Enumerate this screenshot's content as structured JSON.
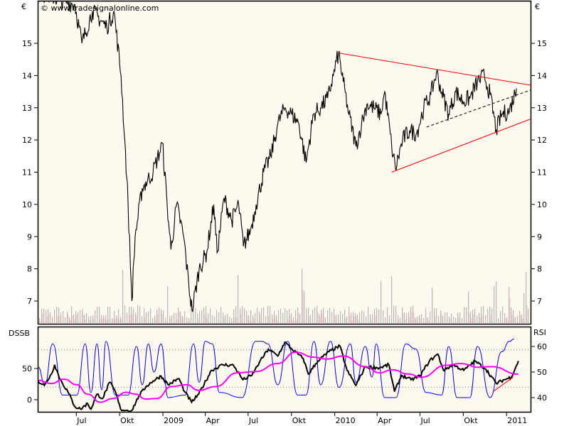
{
  "watermark": "© www.tradesignalonline.com",
  "colors": {
    "background": "#fdf9ee",
    "price": "#000000",
    "trendline": "#ff0000",
    "dssb": "#000000",
    "dssb_signal": "#ff00ff",
    "rsi": "#0000ff",
    "volume": "#b8b8b8",
    "volume_highlight": "#f2c6c6"
  },
  "chart_data": [
    {
      "type": "line",
      "title": "",
      "ylabel_left": "€",
      "ylabel_right": "€",
      "ylim": [
        6.4,
        16.34
      ],
      "xlim": [
        "2008-04-10",
        "2011-02-21"
      ],
      "yticks": [
        "7",
        "8",
        "9",
        "10",
        "11",
        "12",
        "13",
        "14",
        "15"
      ],
      "grid": false,
      "volume_bars": true,
      "series": [
        {
          "points": [
            [
              "2008-04-10",
              16.6
            ],
            [
              "2008-06-28",
              16.2
            ],
            [
              "2008-07-13",
              15.0
            ],
            [
              "2008-08-04",
              16.0
            ],
            [
              "2008-09-04",
              15.5
            ],
            [
              "2008-09-19",
              16.0
            ],
            [
              "2008-10-04",
              14.0
            ],
            [
              "2008-10-12",
              12.0
            ],
            [
              "2008-10-19",
              10.0
            ],
            [
              "2008-10-27",
              7.0
            ],
            [
              "2008-11-03",
              9.0
            ],
            [
              "2008-11-18",
              10.5
            ],
            [
              "2008-12-11",
              11.0
            ],
            [
              "2008-12-31",
              11.9
            ],
            [
              "2009-01-10",
              10.0
            ],
            [
              "2009-01-18",
              8.6
            ],
            [
              "2009-01-30",
              10.0
            ],
            [
              "2009-02-14",
              9.0
            ],
            [
              "2009-02-25",
              7.5
            ],
            [
              "2009-03-04",
              6.7
            ],
            [
              "2009-03-19",
              8.0
            ],
            [
              "2009-04-04",
              8.5
            ],
            [
              "2009-04-19",
              10.0
            ],
            [
              "2009-04-26",
              8.5
            ],
            [
              "2009-05-11",
              10.2
            ],
            [
              "2009-05-27",
              9.5
            ],
            [
              "2009-06-11",
              10.0
            ],
            [
              "2009-06-21",
              8.7
            ],
            [
              "2009-07-06",
              9.2
            ],
            [
              "2009-07-18",
              10.0
            ],
            [
              "2009-08-03",
              11.0
            ],
            [
              "2009-08-18",
              11.5
            ],
            [
              "2009-09-02",
              12.5
            ],
            [
              "2009-09-17",
              13.0
            ],
            [
              "2009-10-02",
              12.8
            ],
            [
              "2009-10-17",
              12.5
            ],
            [
              "2009-11-01",
              11.3
            ],
            [
              "2009-11-17",
              12.8
            ],
            [
              "2009-12-02",
              13.0
            ],
            [
              "2009-12-17",
              13.3
            ],
            [
              "2009-12-29",
              14.0
            ],
            [
              "2010-01-09",
              14.7
            ],
            [
              "2010-01-19",
              13.8
            ],
            [
              "2010-01-31",
              12.8
            ],
            [
              "2010-02-15",
              11.8
            ],
            [
              "2010-02-27",
              12.5
            ],
            [
              "2010-03-10",
              13.1
            ],
            [
              "2010-03-25",
              13.0
            ],
            [
              "2010-04-09",
              12.8
            ],
            [
              "2010-04-17",
              13.5
            ],
            [
              "2010-05-02",
              11.8
            ],
            [
              "2010-05-10",
              11.1
            ],
            [
              "2010-05-25",
              12.0
            ],
            [
              "2010-06-09",
              12.3
            ],
            [
              "2010-06-24",
              12.2
            ],
            [
              "2010-07-09",
              13.0
            ],
            [
              "2010-07-24",
              13.4
            ],
            [
              "2010-08-05",
              14.1
            ],
            [
              "2010-08-16",
              13.5
            ],
            [
              "2010-08-31",
              12.8
            ],
            [
              "2010-09-15",
              13.5
            ],
            [
              "2010-09-30",
              13.2
            ],
            [
              "2010-10-15",
              13.3
            ],
            [
              "2010-10-31",
              13.8
            ],
            [
              "2010-11-15",
              14.0
            ],
            [
              "2010-11-27",
              13.4
            ],
            [
              "2010-12-10",
              12.3
            ],
            [
              "2010-12-22",
              12.8
            ],
            [
              "2011-01-07",
              12.9
            ],
            [
              "2011-01-22",
              13.6
            ]
          ]
        }
      ],
      "trendlines": [
        {
          "style": "solid",
          "color": "#ff0000",
          "from": [
            "2010-01-09",
            14.7
          ],
          "to": [
            "2011-02-21",
            13.7
          ]
        },
        {
          "style": "solid",
          "color": "#ff0000",
          "from": [
            "2010-05-02",
            11.0
          ],
          "to": [
            "2011-02-21",
            12.65
          ]
        },
        {
          "style": "dashed",
          "color": "#000000",
          "from": [
            "2010-07-15",
            12.4
          ],
          "to": [
            "2011-02-21",
            13.55
          ]
        }
      ]
    },
    {
      "type": "line",
      "ylabel_left": "DSSB",
      "ylabel_right": "RSI",
      "ylim_left": [
        -18,
        110
      ],
      "yticks_left": [
        "0",
        "50"
      ],
      "ylim_right": [
        37,
        65
      ],
      "yticks_right": [
        "40",
        "50",
        "60"
      ],
      "reference_levels_left": [
        20,
        80
      ],
      "xticks": [
        "Jul",
        "Okt",
        "2009",
        "Apr",
        "Jul",
        "Okt",
        "2010",
        "Apr",
        "Jul",
        "Okt",
        "2011"
      ],
      "xtick_dates": [
        "2008-07-01",
        "2008-10-01",
        "2009-01-01",
        "2009-04-01",
        "2009-07-01",
        "2009-10-01",
        "2010-01-01",
        "2010-04-01",
        "2010-07-01",
        "2010-10-01",
        "2011-01-01"
      ],
      "series": [
        {
          "axis": "right",
          "color": "#0000ff",
          "points": [
            [
              "2008-04-11",
              52
            ],
            [
              "2008-04-25",
              45
            ],
            [
              "2008-05-12",
              61
            ],
            [
              "2008-06-02",
              41
            ],
            [
              "2008-07-02",
              41
            ],
            [
              "2008-07-20",
              61
            ],
            [
              "2008-08-01",
              42
            ],
            [
              "2008-08-14",
              61
            ],
            [
              "2008-08-24",
              43
            ],
            [
              "2008-09-02",
              62
            ],
            [
              "2008-09-22",
              41
            ],
            [
              "2008-10-19",
              41
            ],
            [
              "2008-11-06",
              60
            ],
            [
              "2008-11-18",
              45
            ],
            [
              "2008-12-01",
              61
            ],
            [
              "2008-12-13",
              50
            ],
            [
              "2008-12-28",
              61
            ],
            [
              "2009-01-12",
              40
            ],
            [
              "2009-02-17",
              41
            ],
            [
              "2009-03-07",
              61
            ],
            [
              "2009-03-19",
              46
            ],
            [
              "2009-04-01",
              62
            ],
            [
              "2009-04-16",
              61
            ],
            [
              "2009-05-01",
              42
            ],
            [
              "2009-06-18",
              40
            ],
            [
              "2009-07-17",
              62
            ],
            [
              "2009-07-31",
              62
            ],
            [
              "2009-08-12",
              61
            ],
            [
              "2009-09-02",
              45
            ],
            [
              "2009-09-23",
              62
            ],
            [
              "2009-10-14",
              41
            ],
            [
              "2009-11-01",
              41
            ],
            [
              "2009-11-18",
              62
            ],
            [
              "2009-12-02",
              45
            ],
            [
              "2009-12-23",
              62
            ],
            [
              "2010-01-10",
              44
            ],
            [
              "2010-02-03",
              61
            ],
            [
              "2010-02-15",
              46
            ],
            [
              "2010-03-07",
              60
            ],
            [
              "2010-03-21",
              48
            ],
            [
              "2010-03-30",
              61
            ],
            [
              "2010-04-17",
              40
            ],
            [
              "2010-05-11",
              40
            ],
            [
              "2010-06-01",
              61
            ],
            [
              "2010-06-22",
              59
            ],
            [
              "2010-07-14",
              42
            ],
            [
              "2010-08-16",
              41
            ],
            [
              "2010-08-31",
              60
            ],
            [
              "2010-09-18",
              40
            ],
            [
              "2010-10-15",
              40
            ],
            [
              "2010-10-31",
              60
            ],
            [
              "2010-11-27",
              40
            ],
            [
              "2010-12-22",
              58
            ],
            [
              "2011-01-07",
              62
            ],
            [
              "2011-01-17",
              63
            ]
          ]
        },
        {
          "axis": "left",
          "color": "#000000",
          "points": [
            [
              "2008-04-11",
              30
            ],
            [
              "2008-04-24",
              23
            ],
            [
              "2008-05-09",
              41
            ],
            [
              "2008-05-16",
              56
            ],
            [
              "2008-05-28",
              32
            ],
            [
              "2008-06-13",
              13
            ],
            [
              "2008-06-28",
              -11
            ],
            [
              "2008-07-10",
              -15
            ],
            [
              "2008-07-25",
              -6
            ],
            [
              "2008-08-01",
              -15
            ],
            [
              "2008-08-14",
              9
            ],
            [
              "2008-08-26",
              2
            ],
            [
              "2008-09-10",
              28
            ],
            [
              "2008-09-22",
              13
            ],
            [
              "2008-10-03",
              -15
            ],
            [
              "2008-10-15",
              -17
            ],
            [
              "2008-10-27",
              -17
            ],
            [
              "2008-11-11",
              6
            ],
            [
              "2008-11-26",
              21
            ],
            [
              "2008-12-11",
              30
            ],
            [
              "2008-12-28",
              38
            ],
            [
              "2009-01-12",
              24
            ],
            [
              "2009-02-04",
              34
            ],
            [
              "2009-02-16",
              13
            ],
            [
              "2009-03-03",
              -4
            ],
            [
              "2009-03-18",
              9
            ],
            [
              "2009-04-14",
              47
            ],
            [
              "2009-05-08",
              56
            ],
            [
              "2009-05-31",
              55
            ],
            [
              "2009-06-20",
              32
            ],
            [
              "2009-07-09",
              39
            ],
            [
              "2009-07-25",
              60
            ],
            [
              "2009-08-13",
              81
            ],
            [
              "2009-09-02",
              70
            ],
            [
              "2009-09-17",
              92
            ],
            [
              "2009-10-02",
              81
            ],
            [
              "2009-10-26",
              66
            ],
            [
              "2009-11-06",
              41
            ],
            [
              "2009-11-26",
              62
            ],
            [
              "2009-12-20",
              77
            ],
            [
              "2010-01-12",
              86
            ],
            [
              "2010-01-27",
              47
            ],
            [
              "2010-02-15",
              23
            ],
            [
              "2010-03-07",
              53
            ],
            [
              "2010-04-06",
              51
            ],
            [
              "2010-04-26",
              56
            ],
            [
              "2010-05-08",
              13
            ],
            [
              "2010-05-23",
              39
            ],
            [
              "2010-06-12",
              32
            ],
            [
              "2010-07-01",
              38
            ],
            [
              "2010-07-21",
              62
            ],
            [
              "2010-08-08",
              73
            ],
            [
              "2010-08-20",
              47
            ],
            [
              "2010-09-09",
              56
            ],
            [
              "2010-10-02",
              47
            ],
            [
              "2010-10-26",
              62
            ],
            [
              "2010-11-18",
              49
            ],
            [
              "2010-12-10",
              26
            ],
            [
              "2010-12-27",
              32
            ],
            [
              "2011-01-11",
              36
            ],
            [
              "2011-01-26",
              62
            ]
          ]
        },
        {
          "axis": "left",
          "color": "#ff00ff",
          "points": [
            [
              "2008-04-11",
              31
            ],
            [
              "2008-05-09",
              26
            ],
            [
              "2008-06-05",
              33
            ],
            [
              "2008-07-02",
              24
            ],
            [
              "2008-07-25",
              9
            ],
            [
              "2008-08-21",
              -4
            ],
            [
              "2008-09-17",
              2
            ],
            [
              "2008-10-15",
              12
            ],
            [
              "2008-11-03",
              9
            ],
            [
              "2008-11-26",
              1
            ],
            [
              "2008-12-19",
              2
            ],
            [
              "2009-01-19",
              21
            ],
            [
              "2009-02-20",
              24
            ],
            [
              "2009-03-18",
              15
            ],
            [
              "2009-04-23",
              21
            ],
            [
              "2009-06-08",
              43
            ],
            [
              "2009-07-17",
              45
            ],
            [
              "2009-09-02",
              58
            ],
            [
              "2009-10-10",
              76
            ],
            [
              "2009-11-18",
              68
            ],
            [
              "2009-12-15",
              65
            ],
            [
              "2010-01-19",
              70
            ],
            [
              "2010-03-07",
              53
            ],
            [
              "2010-04-06",
              43
            ],
            [
              "2010-05-03",
              48
            ],
            [
              "2010-06-07",
              41
            ],
            [
              "2010-07-04",
              36
            ],
            [
              "2010-08-25",
              55
            ],
            [
              "2010-09-24",
              58
            ],
            [
              "2010-11-03",
              52
            ],
            [
              "2010-11-30",
              53
            ],
            [
              "2011-01-26",
              41
            ]
          ]
        }
      ],
      "trendlines": [
        {
          "style": "solid",
          "color": "#ff0000",
          "from": [
            "2010-12-03",
            13
          ],
          "to": [
            "2011-01-15",
            36
          ]
        }
      ]
    }
  ]
}
